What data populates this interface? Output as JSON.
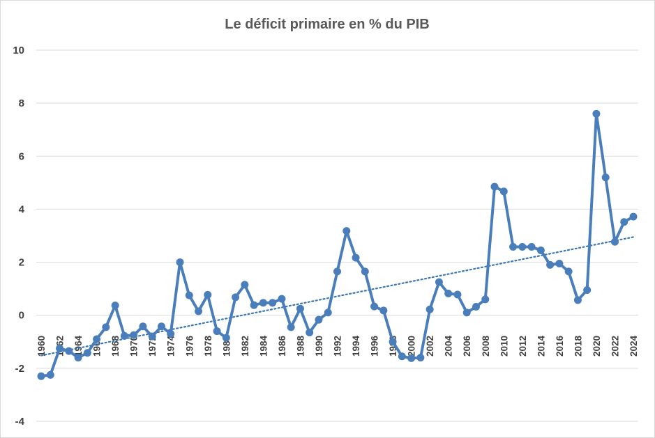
{
  "chart_data": {
    "type": "line",
    "title": "Le déficit primaire en % du PIB",
    "xlabel": "",
    "ylabel": "",
    "ylim": [
      -4,
      10
    ],
    "yticks": [
      "-4",
      "-2",
      "0",
      "2",
      "4",
      "6",
      "8",
      "10"
    ],
    "x": [
      1960,
      1961,
      1962,
      1963,
      1964,
      1965,
      1966,
      1967,
      1968,
      1969,
      1970,
      1971,
      1972,
      1973,
      1974,
      1975,
      1976,
      1977,
      1978,
      1979,
      1980,
      1981,
      1982,
      1983,
      1984,
      1985,
      1986,
      1987,
      1988,
      1989,
      1990,
      1991,
      1992,
      1993,
      1994,
      1995,
      1996,
      1997,
      1998,
      1999,
      2000,
      2001,
      2002,
      2003,
      2004,
      2005,
      2006,
      2007,
      2008,
      2009,
      2010,
      2011,
      2012,
      2013,
      2014,
      2015,
      2016,
      2017,
      2018,
      2019,
      2020,
      2021,
      2022,
      2023,
      2024
    ],
    "xtick_labels": [
      "1960",
      "1962",
      "1964",
      "1966",
      "1968",
      "1970",
      "1972",
      "1974",
      "1976",
      "1978",
      "1980",
      "1982",
      "1984",
      "1986",
      "1988",
      "1990",
      "1992",
      "1994",
      "1996",
      "1998",
      "2000",
      "2002",
      "2004",
      "2006",
      "2008",
      "2010",
      "2012",
      "2014",
      "2016",
      "2018",
      "2020",
      "2022",
      "2024"
    ],
    "series": [
      {
        "values": [
          -2.3,
          -2.25,
          -1.25,
          -1.35,
          -1.6,
          -1.42,
          -0.9,
          -0.45,
          0.37,
          -0.78,
          -0.75,
          -0.42,
          -0.8,
          -0.42,
          -0.7,
          2.0,
          0.75,
          0.15,
          0.77,
          -0.6,
          -0.85,
          0.68,
          1.15,
          0.38,
          0.47,
          0.47,
          0.62,
          -0.45,
          0.25,
          -0.65,
          -0.17,
          0.1,
          1.65,
          3.18,
          2.17,
          1.65,
          0.33,
          0.18,
          -1.0,
          -1.55,
          -1.62,
          -1.6,
          0.22,
          1.25,
          0.82,
          0.78,
          0.1,
          0.32,
          0.6,
          4.85,
          4.67,
          2.58,
          2.58,
          2.58,
          2.45,
          1.9,
          1.95,
          1.65,
          0.57,
          0.95,
          7.6,
          5.2,
          2.77,
          3.52,
          3.72
        ],
        "color": "#4a7ebb"
      }
    ],
    "trendline": {
      "style": "dotted",
      "color": "#3a77b0",
      "start": -1.52,
      "end": 2.95
    },
    "grid": true,
    "legend": "none"
  }
}
